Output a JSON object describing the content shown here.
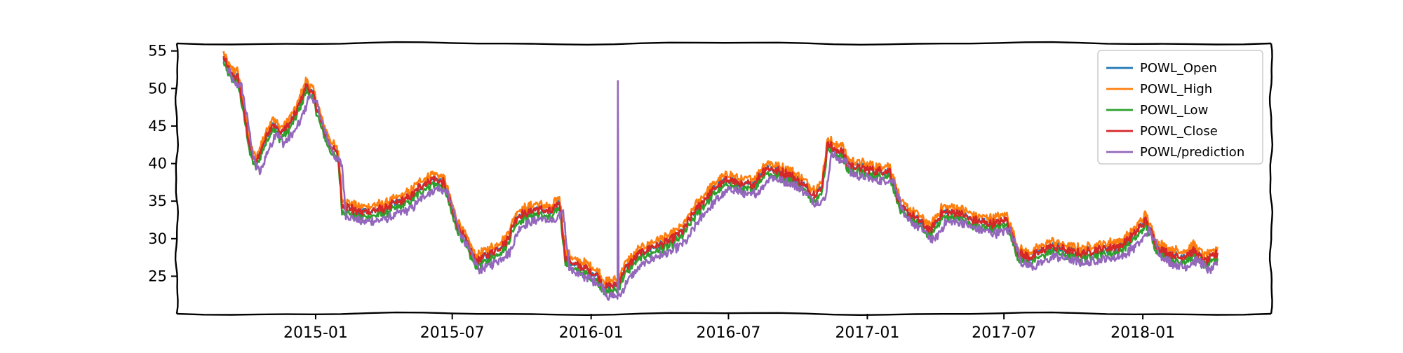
{
  "chart_data": {
    "type": "line",
    "title": "",
    "xlabel": "",
    "ylabel": "",
    "x_start": "2014-09-01",
    "x_end": "2018-04-10",
    "xlim": [
      "2014-07-01",
      "2018-06-20"
    ],
    "ylim": [
      20,
      56
    ],
    "yticks": [
      25,
      30,
      35,
      40,
      45,
      50,
      55
    ],
    "xticks": [
      "2015-01",
      "2015-07",
      "2016-01",
      "2016-07",
      "2017-01",
      "2017-07",
      "2018-01"
    ],
    "legend_position": "top-right",
    "grid": false,
    "close_keypoints": [
      [
        "2014-09-01",
        54.0
      ],
      [
        "2014-09-10",
        52.0
      ],
      [
        "2014-09-20",
        51.5
      ],
      [
        "2014-09-28",
        47.0
      ],
      [
        "2014-10-06",
        42.0
      ],
      [
        "2014-10-14",
        40.0
      ],
      [
        "2014-10-25",
        43.0
      ],
      [
        "2014-11-05",
        45.5
      ],
      [
        "2014-11-15",
        44.0
      ],
      [
        "2014-11-25",
        45.0
      ],
      [
        "2014-12-05",
        46.5
      ],
      [
        "2014-12-20",
        50.5
      ],
      [
        "2014-12-29",
        49.0
      ],
      [
        "2015-01-10",
        45.0
      ],
      [
        "2015-01-20",
        42.5
      ],
      [
        "2015-01-31",
        41.0
      ],
      [
        "2015-02-05",
        34.5
      ],
      [
        "2015-03-01",
        33.5
      ],
      [
        "2015-04-01",
        34.0
      ],
      [
        "2015-05-05",
        35.5
      ],
      [
        "2015-05-20",
        37.0
      ],
      [
        "2015-06-05",
        38.0
      ],
      [
        "2015-06-20",
        37.5
      ],
      [
        "2015-07-05",
        32.5
      ],
      [
        "2015-07-20",
        29.5
      ],
      [
        "2015-08-01",
        27.0
      ],
      [
        "2015-08-20",
        28.0
      ],
      [
        "2015-09-10",
        29.5
      ],
      [
        "2015-09-25",
        33.0
      ],
      [
        "2015-10-20",
        34.0
      ],
      [
        "2015-11-10",
        33.5
      ],
      [
        "2015-11-20",
        35.0
      ],
      [
        "2015-11-28",
        27.5
      ],
      [
        "2015-12-10",
        26.5
      ],
      [
        "2015-12-25",
        26.0
      ],
      [
        "2016-01-10",
        25.0
      ],
      [
        "2016-01-20",
        23.5
      ],
      [
        "2016-02-05",
        24.0
      ],
      [
        "2016-02-15",
        26.0
      ],
      [
        "2016-03-05",
        28.0
      ],
      [
        "2016-03-25",
        29.0
      ],
      [
        "2016-04-10",
        29.5
      ],
      [
        "2016-05-01",
        31.0
      ],
      [
        "2016-05-20",
        34.0
      ],
      [
        "2016-06-10",
        36.5
      ],
      [
        "2016-07-01",
        38.0
      ],
      [
        "2016-07-20",
        37.0
      ],
      [
        "2016-08-05",
        37.5
      ],
      [
        "2016-08-20",
        39.5
      ],
      [
        "2016-09-05",
        39.0
      ],
      [
        "2016-09-20",
        38.5
      ],
      [
        "2016-10-05",
        37.5
      ],
      [
        "2016-10-20",
        36.0
      ],
      [
        "2016-11-01",
        36.5
      ],
      [
        "2016-11-10",
        43.0
      ],
      [
        "2016-11-20",
        41.5
      ],
      [
        "2016-11-28",
        42.0
      ],
      [
        "2016-12-05",
        40.0
      ],
      [
        "2016-12-20",
        39.5
      ],
      [
        "2017-01-10",
        39.0
      ],
      [
        "2017-01-31",
        39.0
      ],
      [
        "2017-02-15",
        34.0
      ],
      [
        "2017-03-10",
        32.5
      ],
      [
        "2017-03-25",
        31.0
      ],
      [
        "2017-04-10",
        33.5
      ],
      [
        "2017-05-01",
        33.5
      ],
      [
        "2017-05-20",
        32.5
      ],
      [
        "2017-06-15",
        32.0
      ],
      [
        "2017-07-05",
        32.5
      ],
      [
        "2017-07-20",
        28.0
      ],
      [
        "2017-08-05",
        27.5
      ],
      [
        "2017-09-01",
        29.0
      ],
      [
        "2017-09-20",
        28.5
      ],
      [
        "2017-10-10",
        28.0
      ],
      [
        "2017-11-01",
        28.5
      ],
      [
        "2017-12-01",
        29.0
      ],
      [
        "2017-12-20",
        30.5
      ],
      [
        "2018-01-05",
        32.5
      ],
      [
        "2018-01-20",
        29.0
      ],
      [
        "2018-02-05",
        28.0
      ],
      [
        "2018-02-20",
        27.5
      ],
      [
        "2018-03-10",
        28.5
      ],
      [
        "2018-03-25",
        27.0
      ],
      [
        "2018-04-10",
        28.0
      ]
    ],
    "prediction_spike": {
      "date": "2016-02-05",
      "low": 22.0,
      "high": 51.0
    },
    "series": [
      {
        "name": "POWL_Open",
        "color": "#1f77b4",
        "offset": 0.0
      },
      {
        "name": "POWL_High",
        "color": "#ff7f0e",
        "offset": 0.7
      },
      {
        "name": "POWL_Low",
        "color": "#2ca02c",
        "offset": -0.7
      },
      {
        "name": "POWL_Close",
        "color": "#d62728",
        "offset": 0.0
      },
      {
        "name": "POWL/prediction",
        "color": "#9467bd",
        "offset": -1.3,
        "lag_days": 5
      }
    ]
  }
}
